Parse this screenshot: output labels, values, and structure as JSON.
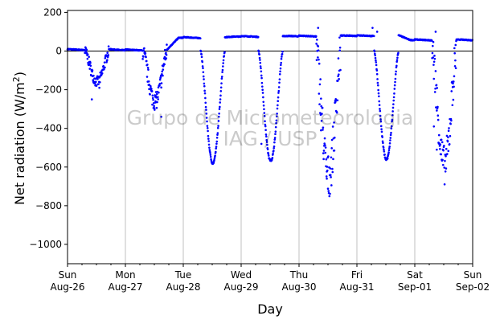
{
  "chart_data": {
    "type": "scatter",
    "xlabel": "Day",
    "ylabel_main": "Net radiation (W/m",
    "ylabel_sup": "2",
    "ylabel_close": ")",
    "xlim": [
      0,
      7
    ],
    "ylim": [
      -1100,
      210
    ],
    "yticks": [
      200,
      0,
      -200,
      -400,
      -600,
      -800,
      -1000
    ],
    "ytick_labels": [
      "200",
      "0",
      "−200",
      "−400",
      "−600",
      "−800",
      "−1000"
    ],
    "xticks": [
      {
        "x": 0,
        "line1": "Sun",
        "line2": "Aug-26"
      },
      {
        "x": 1,
        "line1": "Mon",
        "line2": "Aug-27"
      },
      {
        "x": 2,
        "line1": "Tue",
        "line2": "Aug-28"
      },
      {
        "x": 3,
        "line1": "Wed",
        "line2": "Aug-29"
      },
      {
        "x": 4,
        "line1": "Thu",
        "line2": "Aug-30"
      },
      {
        "x": 5,
        "line1": "Fri",
        "line2": "Aug-31"
      },
      {
        "x": 6,
        "line1": "Sat",
        "line2": "Sep-01"
      },
      {
        "x": 7,
        "line1": "Sun",
        "line2": "Sep-02"
      }
    ],
    "grid": "vertical",
    "zero_line": true,
    "series": [
      {
        "color": "#0000ff",
        "marker": "dot",
        "days": [
          {
            "start": 0,
            "peak": -160,
            "night": 10,
            "type": "noisy",
            "spikes": [
              [
                0.42,
                -250
              ],
              [
                0.55,
                -190
              ]
            ]
          },
          {
            "start": 1,
            "peak": -260,
            "night": 8,
            "type": "noisy",
            "spikes": [
              [
                1.62,
                -340
              ],
              [
                1.52,
                -260
              ]
            ]
          },
          {
            "start": 2,
            "peak": -580,
            "night": 72,
            "type": "smooth",
            "spikes": []
          },
          {
            "start": 3,
            "peak": -570,
            "night": 78,
            "type": "smooth",
            "spikes": [
              [
                3.35,
                -480
              ]
            ]
          },
          {
            "start": 4,
            "peak": -650,
            "night": 80,
            "type": "noisy",
            "spikes": [
              [
                4.48,
                -660
              ],
              [
                4.38,
                -410
              ],
              [
                4.33,
                120
              ]
            ]
          },
          {
            "start": 5,
            "peak": -560,
            "night": 82,
            "type": "smooth",
            "spikes": [
              [
                5.27,
                120
              ],
              [
                5.35,
                100
              ]
            ]
          },
          {
            "start": 6,
            "peak": -590,
            "night": 60,
            "type": "noisy",
            "spikes": [
              [
                6.38,
                -510
              ],
              [
                6.33,
                -390
              ],
              [
                6.36,
                100
              ]
            ]
          }
        ]
      }
    ],
    "watermark_line1": "Grupo de Micrometeorologia",
    "watermark_line2": "IAG / USP"
  }
}
